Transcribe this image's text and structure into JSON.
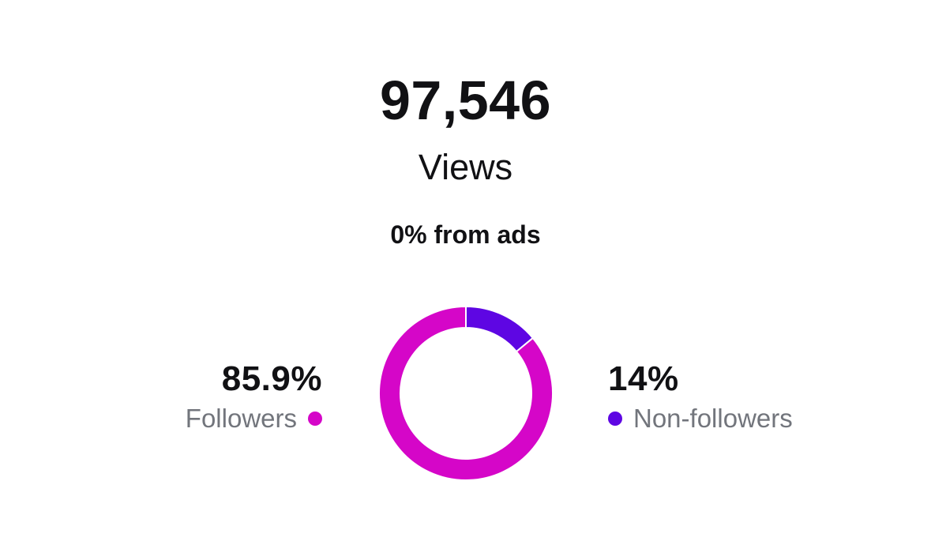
{
  "summary": {
    "total_views": "97,546",
    "views_label": "Views",
    "ads_label": "0% from ads"
  },
  "colors": {
    "followers": "#D506C8",
    "non_followers": "#5E06E3"
  },
  "legend": {
    "followers": {
      "percent": "85.9%",
      "label": "Followers",
      "icon": "dot-icon"
    },
    "non_followers": {
      "percent": "14%",
      "label": "Non-followers",
      "icon": "dot-icon"
    }
  },
  "chart_data": {
    "type": "pie",
    "style": "donut",
    "series": [
      {
        "name": "Followers",
        "value": 85.9
      },
      {
        "name": "Non-followers",
        "value": 14
      }
    ]
  }
}
